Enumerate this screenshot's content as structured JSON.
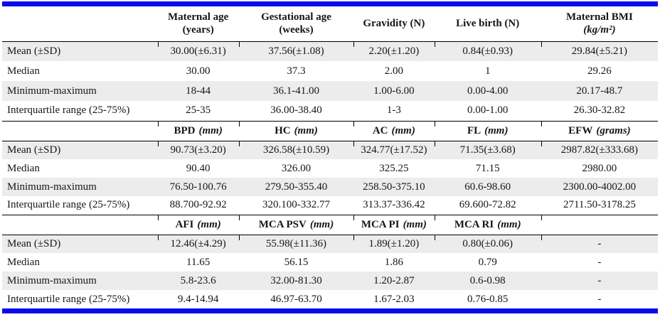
{
  "colors": {
    "accent_blue": "#0a0aef",
    "row_shade": "#ececec",
    "rule_black": "#000000"
  },
  "sections": [
    {
      "header": {
        "cells": [
          {
            "line1": "Maternal age",
            "line2": "(years)"
          },
          {
            "line1": "Gestational age",
            "line2": "(weeks)"
          },
          {
            "line1": "Gravidity (N)",
            "line2": ""
          },
          {
            "line1": "Live birth (N)",
            "line2": ""
          },
          {
            "line1": "Maternal BMI",
            "line2": "(kg/m²)"
          }
        ]
      },
      "rows": [
        {
          "label": "Mean (±SD)",
          "values": [
            "30.00(±6.31)",
            "37.56(±1.08)",
            "2.20(±1.20)",
            "0.84(±0.93)",
            "29.84(±5.21)"
          ]
        },
        {
          "label": "Median",
          "values": [
            "30.00",
            "37.3",
            "2.00",
            "1",
            "29.26"
          ]
        },
        {
          "label": "Minimum-maximum",
          "values": [
            "18-44",
            "36.1-41.00",
            "1.00-6.00",
            "0.00-4.00",
            "20.17-48.7"
          ]
        },
        {
          "label": "Interquartile range (25-75%)",
          "values": [
            "25-35",
            "36.00-38.40",
            "1-3",
            "0.00-1.00",
            "26.30-32.82"
          ]
        }
      ]
    },
    {
      "header": {
        "cells": [
          {
            "name": "BPD",
            "unit": "(mm)"
          },
          {
            "name": "HC",
            "unit": "(mm)"
          },
          {
            "name": "AC",
            "unit": "(mm)"
          },
          {
            "name": "FL",
            "unit": "(mm)"
          },
          {
            "name": "EFW",
            "unit": "(grams)"
          }
        ]
      },
      "rows": [
        {
          "label": "Mean (±SD)",
          "values": [
            "90.73(±3.20)",
            "326.58(±10.59)",
            "324.77(±17.52)",
            "71.35(±3.68)",
            "2987.82(±333.68)"
          ]
        },
        {
          "label": "Median",
          "values": [
            "90.40",
            "326.00",
            "325.25",
            "71.15",
            "2980.00"
          ]
        },
        {
          "label": "Minimum-maximum",
          "values": [
            "76.50-100.76",
            "279.50-355.40",
            "258.50-375.10",
            "60.6-98.60",
            "2300.00-4002.00"
          ]
        },
        {
          "label": "Interquartile range (25-75%)",
          "values": [
            "88.700-92.92",
            "320.100-332.77",
            "313.37-336.42",
            "69.600-72.82",
            "2711.50-3178.25"
          ]
        }
      ]
    },
    {
      "header": {
        "cells": [
          {
            "name": "AFI",
            "unit": "(mm)"
          },
          {
            "name": "MCA PSV",
            "unit": "(mm)"
          },
          {
            "name": "MCA PI",
            "unit": "(mm)"
          },
          {
            "name": "MCA RI",
            "unit": "(mm)"
          },
          {
            "name": "",
            "unit": ""
          }
        ]
      },
      "rows": [
        {
          "label": "Mean (±SD)",
          "values": [
            "12.46(±4.29)",
            "55.98(±11.36)",
            "1.89(±1.20)",
            "0.80(±0.06)",
            "-"
          ]
        },
        {
          "label": "Median",
          "values": [
            "11.65",
            "56.15",
            "1.86",
            "0.79",
            "-"
          ]
        },
        {
          "label": "Minimum-maximum",
          "values": [
            "5.8-23.6",
            "32.00-81.30",
            "1.20-2.87",
            "0.6-0.98",
            "-"
          ]
        },
        {
          "label": "Interquartile range (25-75%)",
          "values": [
            "9.4-14.94",
            "46.97-63.70",
            "1.67-2.03",
            "0.76-0.85",
            "-"
          ]
        }
      ]
    }
  ]
}
